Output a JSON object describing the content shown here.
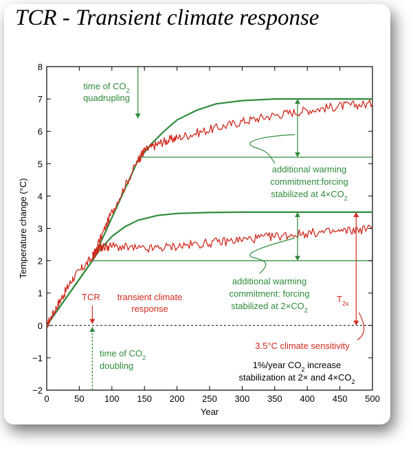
{
  "page": {
    "title": "TCR - Transient climate response"
  },
  "colors": {
    "model": "#d02a1e",
    "forcing": "#2e8b3a",
    "axis": "#000000"
  },
  "chart_data": {
    "type": "line",
    "xlabel": "Year",
    "ylabel": "Temperature change (°C)",
    "xlim": [
      0,
      500
    ],
    "ylim": [
      -2,
      8
    ],
    "xticks": [
      0,
      50,
      100,
      150,
      200,
      250,
      300,
      350,
      400,
      450,
      500
    ],
    "yticks": [
      -2,
      -1,
      0,
      1,
      2,
      3,
      4,
      5,
      6,
      7,
      8
    ],
    "series": [
      {
        "key": "stab4x",
        "x": [
          0,
          70,
          140,
          160,
          180,
          200,
          230,
          260,
          300,
          350,
          400,
          450,
          500
        ],
        "y": [
          0,
          2.0,
          5.1,
          5.6,
          6.0,
          6.35,
          6.65,
          6.85,
          6.95,
          7.0,
          7.0,
          7.0,
          7.0
        ]
      },
      {
        "key": "stab2x",
        "x": [
          0,
          70,
          80,
          100,
          120,
          140,
          170,
          200,
          250,
          300,
          400,
          500
        ],
        "y": [
          0,
          2.0,
          2.3,
          2.75,
          3.05,
          3.25,
          3.4,
          3.46,
          3.49,
          3.5,
          3.5,
          3.5
        ]
      },
      {
        "key": "model4x",
        "x": [
          0,
          20,
          40,
          70,
          100,
          140,
          150,
          175,
          200,
          250,
          300,
          350,
          400,
          450,
          500
        ],
        "y": [
          0,
          0.75,
          1.45,
          2.1,
          3.5,
          5.1,
          5.4,
          5.65,
          5.8,
          6.05,
          6.3,
          6.5,
          6.65,
          6.78,
          6.85
        ]
      },
      {
        "key": "model2x",
        "x": [
          70,
          80,
          100,
          150,
          200,
          250,
          300,
          350,
          400,
          450,
          500
        ],
        "y": [
          2.1,
          2.4,
          2.45,
          2.35,
          2.45,
          2.55,
          2.65,
          2.75,
          2.85,
          2.9,
          3.0
        ]
      }
    ],
    "annotations": {
      "quadrupling": [
        "time of CO2",
        "quadrupling"
      ],
      "doubling": [
        "time of CO2",
        "doubling"
      ],
      "commit4x": [
        "additional warming",
        "commitment:forcing",
        "stabilized at 4×CO2"
      ],
      "commit2x": [
        "additional warming",
        "commitment: forcing",
        "stabilized at 2×CO2"
      ],
      "tcr": "TCR",
      "tcr_desc": [
        "transient climate",
        "response"
      ],
      "t2x": "T2x",
      "sensitivity": "3.5°C climate sensitivity",
      "scenario": [
        "1%/year CO2 increase",
        "stabilization at 2× and 4×CO2"
      ]
    }
  }
}
